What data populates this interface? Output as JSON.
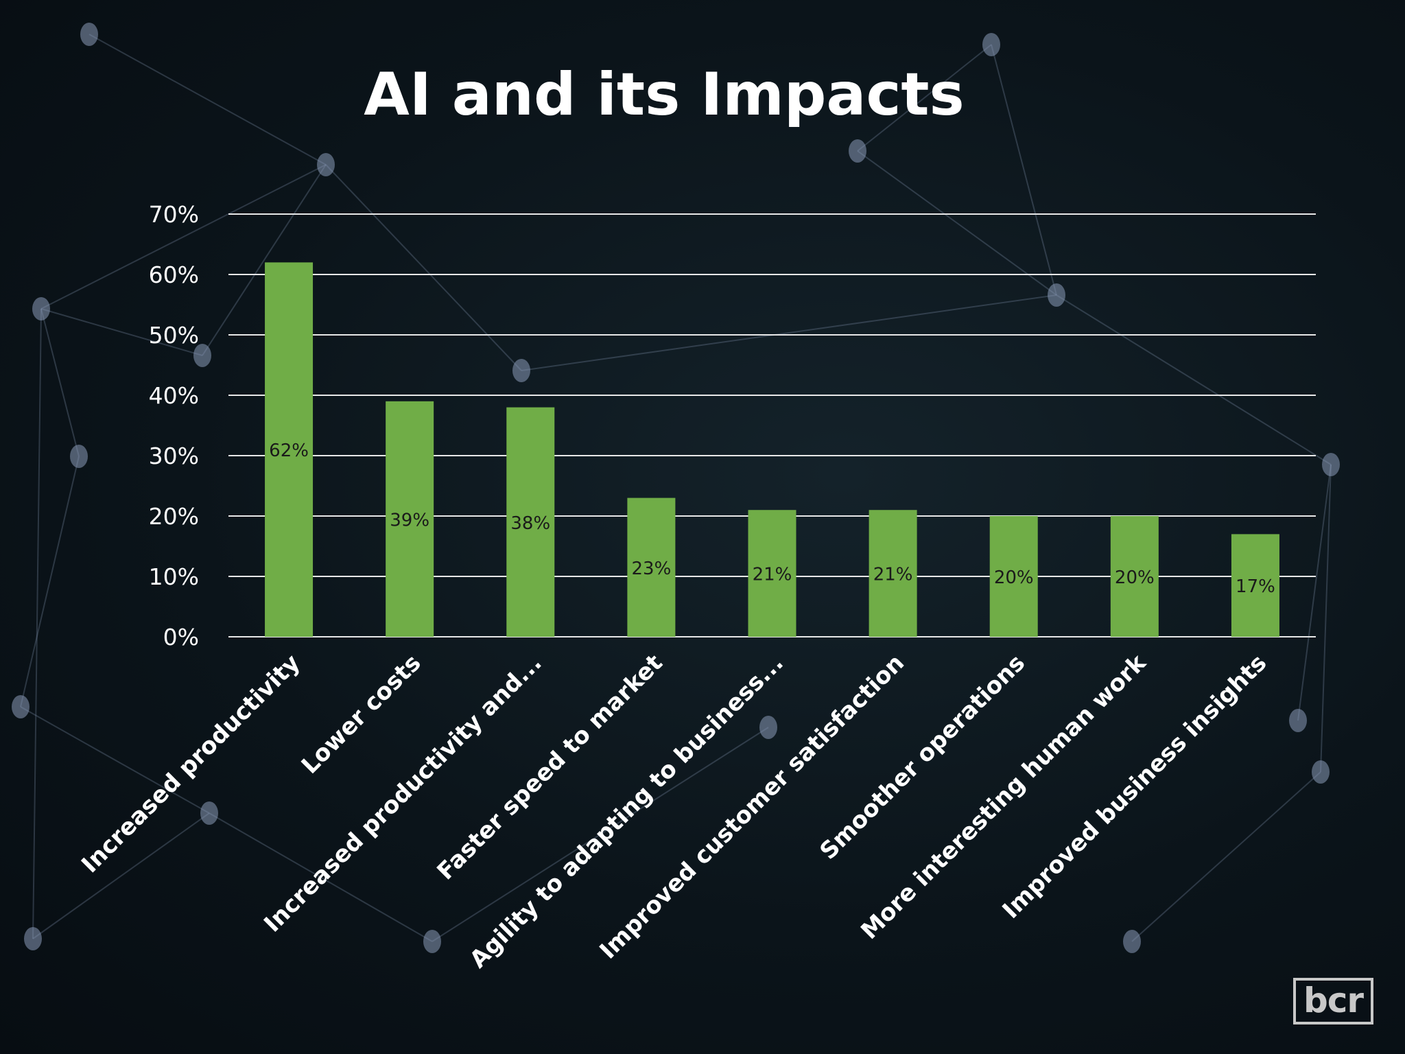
{
  "slide": {
    "title": "AI and its Impacts",
    "logo_text": "bcr"
  },
  "colors": {
    "bar": "#70ad47",
    "grid": "#e8e8e8",
    "text": "#ffffff",
    "data_label": "#1a1a1a",
    "network": "#8a9ab8"
  },
  "chart_data": {
    "type": "bar",
    "title": "",
    "xlabel": "",
    "ylabel": "",
    "categories": [
      "Increased productivity",
      "Lower costs",
      "Increased productivity and...",
      "Faster speed to market",
      "Agility to adapting to business...",
      "Improved customer satisfaction",
      "Smoother operations",
      "More interesting human work",
      "Improved business insights"
    ],
    "values": [
      62,
      39,
      38,
      23,
      21,
      21,
      20,
      20,
      17
    ],
    "data_labels": [
      "62%",
      "39%",
      "38%",
      "23%",
      "21%",
      "21%",
      "20%",
      "20%",
      "17%"
    ],
    "y_ticks": [
      "0%",
      "10%",
      "20%",
      "30%",
      "40%",
      "50%",
      "60%",
      "70%"
    ],
    "ylim": [
      0,
      70
    ],
    "grid": true,
    "legend": false
  }
}
